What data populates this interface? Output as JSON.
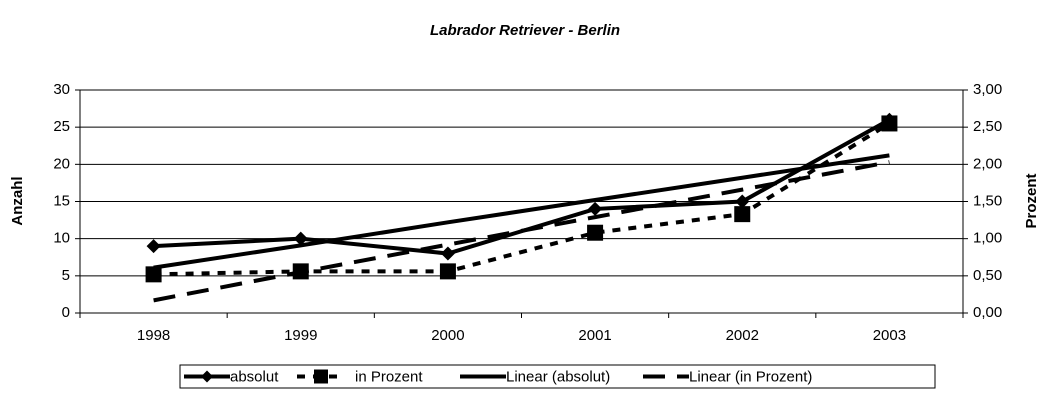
{
  "chart_data": {
    "type": "line",
    "title": "Labrador Retriever - Berlin",
    "ylabel": "Anzahl",
    "y2label": "Prozent",
    "categories": [
      "1998",
      "1999",
      "2000",
      "2001",
      "2002",
      "2003"
    ],
    "ylim": [
      0,
      30
    ],
    "yticks": [
      0,
      5,
      10,
      15,
      20,
      25,
      30
    ],
    "y2lim": [
      0,
      3
    ],
    "y2ticks": [
      {
        "value": 0,
        "label": "0,00"
      },
      {
        "value": 0.5,
        "label": "0,50"
      },
      {
        "value": 1,
        "label": "1,00"
      },
      {
        "value": 1.5,
        "label": "1,50"
      },
      {
        "value": 2,
        "label": "2,00"
      },
      {
        "value": 2.5,
        "label": "2,50"
      },
      {
        "value": 3,
        "label": "3,00"
      }
    ],
    "grid": true,
    "legend": "bottom",
    "series": [
      {
        "name": "absolut",
        "color": "#000000",
        "dash": "solid",
        "marker": "diamond",
        "values": [
          9,
          10,
          8,
          14,
          15,
          26
        ]
      },
      {
        "name": "in Prozent",
        "color": "#000000",
        "dash": "dashed",
        "marker": "square",
        "axis": "y2",
        "values": [
          0.52,
          0.56,
          0.56,
          1.08,
          1.33,
          2.55
        ]
      },
      {
        "name": "Linear (absolut)",
        "color": "#000000",
        "dash": "solid",
        "marker": "none",
        "values": [
          6.1,
          9.1,
          12.2,
          15.2,
          18.2,
          21.2
        ]
      },
      {
        "name": "Linear (in Prozent)",
        "color": "#000000",
        "dash": "longdash",
        "marker": "none",
        "axis": "y2",
        "values": [
          0.17,
          0.55,
          0.92,
          1.29,
          1.66,
          2.03
        ]
      }
    ]
  }
}
